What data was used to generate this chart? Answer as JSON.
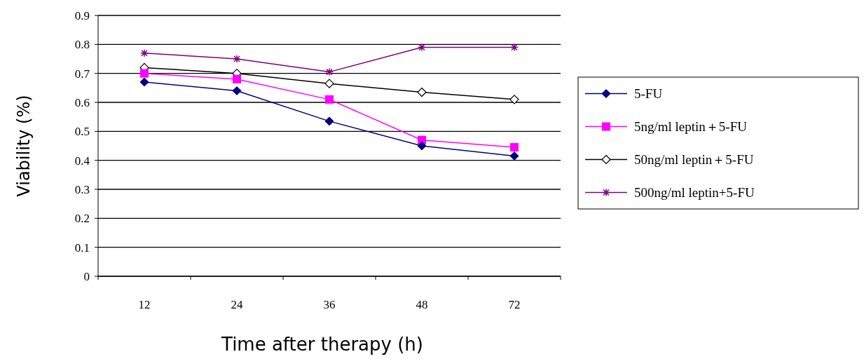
{
  "chart_data": {
    "type": "line",
    "xlabel": "Time after therapy (h)",
    "ylabel": "Viability (%)",
    "categories": [
      "12",
      "24",
      "36",
      "48",
      "72"
    ],
    "ylim": [
      0,
      0.9
    ],
    "yticks": [
      0,
      0.1,
      0.2,
      0.3,
      0.4,
      0.5,
      0.6,
      0.7,
      0.8,
      0.9
    ],
    "grid": "y",
    "legend": "right",
    "series": [
      {
        "name": "5-FU",
        "color": "#000080",
        "marker": "diamond",
        "values": [
          0.67,
          0.64,
          0.535,
          0.45,
          0.415
        ]
      },
      {
        "name": "5ng/ml leptin＋5-FU",
        "color": "#ff00ff",
        "marker": "square",
        "values": [
          0.7,
          0.68,
          0.61,
          0.47,
          0.445
        ]
      },
      {
        "name": "50ng/ml leptin＋5-FU",
        "color": "#000000",
        "marker": "diamond-open",
        "values": [
          0.72,
          0.7,
          0.665,
          0.635,
          0.61
        ]
      },
      {
        "name": "500ng/ml leptin+5-FU",
        "color": "#800080",
        "marker": "cross",
        "values": [
          0.77,
          0.75,
          0.705,
          0.79,
          0.79
        ]
      }
    ]
  }
}
